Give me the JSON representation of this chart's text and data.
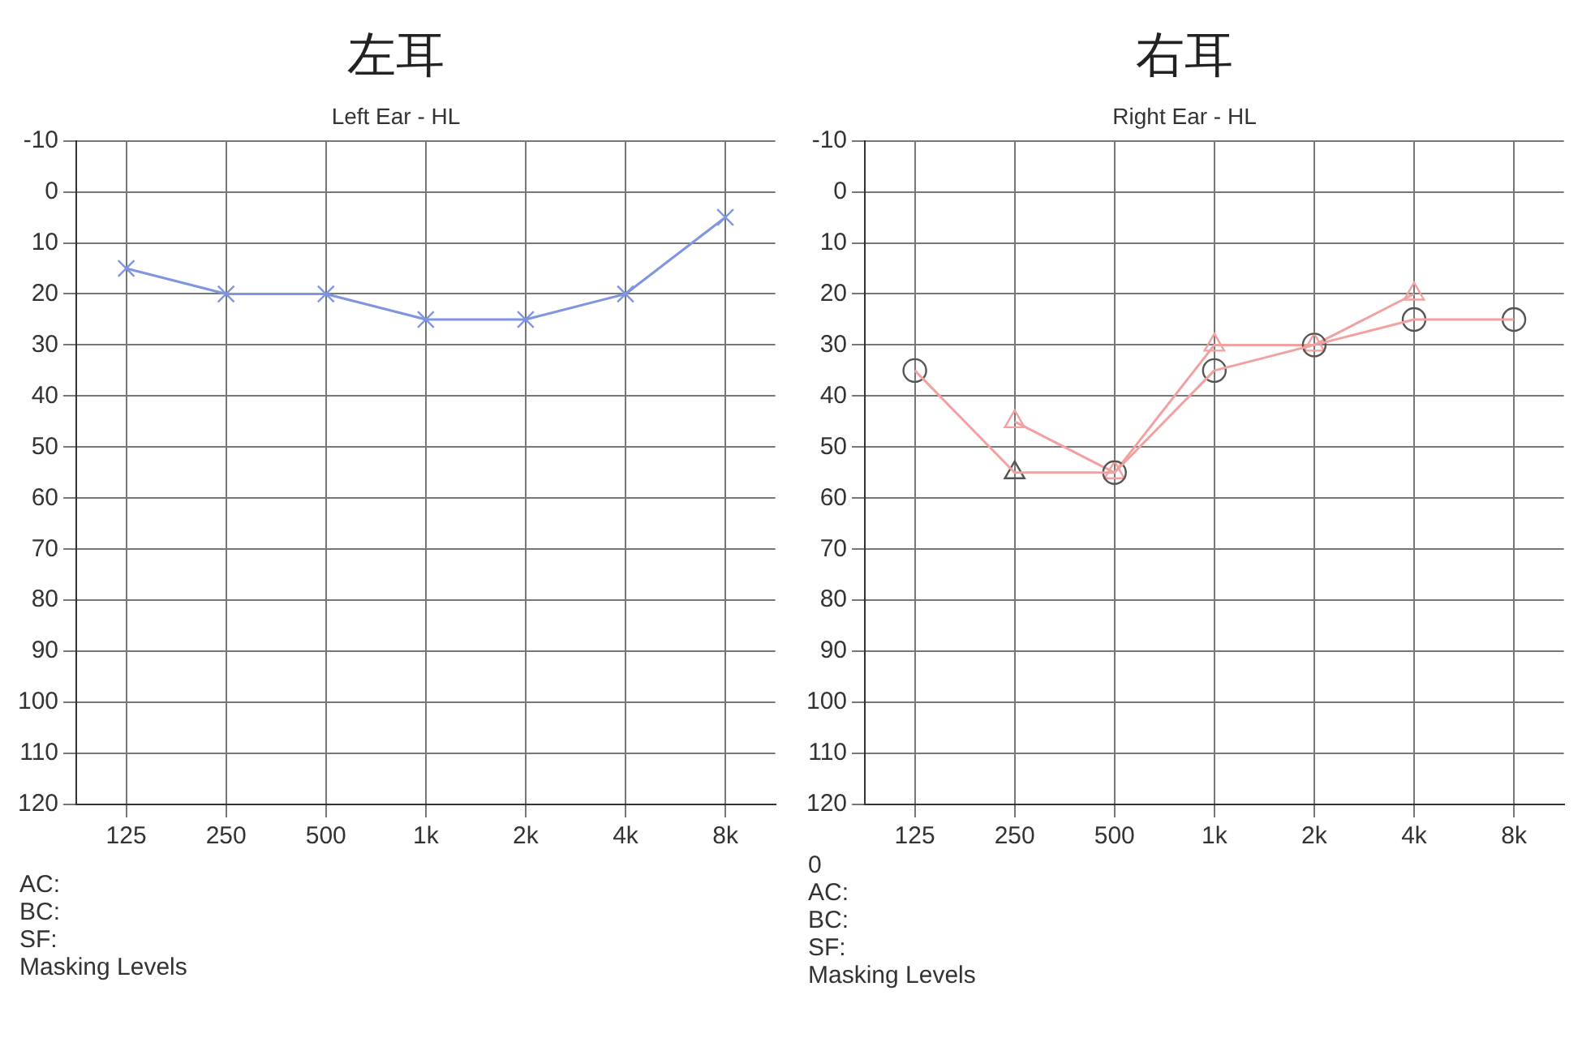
{
  "chart_data": [
    {
      "type": "line",
      "title": "左耳",
      "subtitle": "Left Ear - HL",
      "categories": [
        "125",
        "250",
        "500",
        "1k",
        "2k",
        "4k",
        "8k"
      ],
      "series": [
        {
          "color": "#7f95e0",
          "marker": "cross",
          "values": [
            15,
            20,
            20,
            25,
            25,
            20,
            5
          ]
        }
      ],
      "ylim": [
        120,
        -10
      ],
      "yticks": [
        -10,
        0,
        10,
        20,
        30,
        40,
        50,
        60,
        70,
        80,
        90,
        100,
        110,
        120
      ],
      "grid": true,
      "legend": false,
      "annotations": [
        "AC:",
        "BC:",
        "SF:",
        "Masking Levels"
      ]
    },
    {
      "type": "line",
      "title": "右耳",
      "subtitle": "Right Ear - HL",
      "categories": [
        "125",
        "250",
        "500",
        "1k",
        "2k",
        "4k",
        "8k"
      ],
      "series": [
        {
          "color": "#f2a0a0",
          "marker": "none",
          "values": [
            35,
            55,
            55,
            35,
            30,
            25,
            25
          ]
        },
        {
          "type": "scatter",
          "color": "#555555",
          "marker": "circle",
          "values": [
            35,
            null,
            55,
            35,
            30,
            25,
            25
          ]
        },
        {
          "type": "scatter",
          "color": "#555555",
          "marker": "triangle",
          "values": [
            null,
            55,
            null,
            null,
            null,
            null,
            null
          ]
        },
        {
          "color": "#f2a0a0",
          "marker": "triangle",
          "values": [
            null,
            45,
            55,
            30,
            30,
            20,
            null
          ]
        }
      ],
      "ylim": [
        120,
        -10
      ],
      "yticks": [
        -10,
        0,
        10,
        20,
        30,
        40,
        50,
        60,
        70,
        80,
        90,
        100,
        110,
        120
      ],
      "grid": true,
      "legend": false,
      "annotations": [
        "0",
        "AC:",
        "BC:",
        "SF:",
        "Masking Levels"
      ]
    }
  ]
}
